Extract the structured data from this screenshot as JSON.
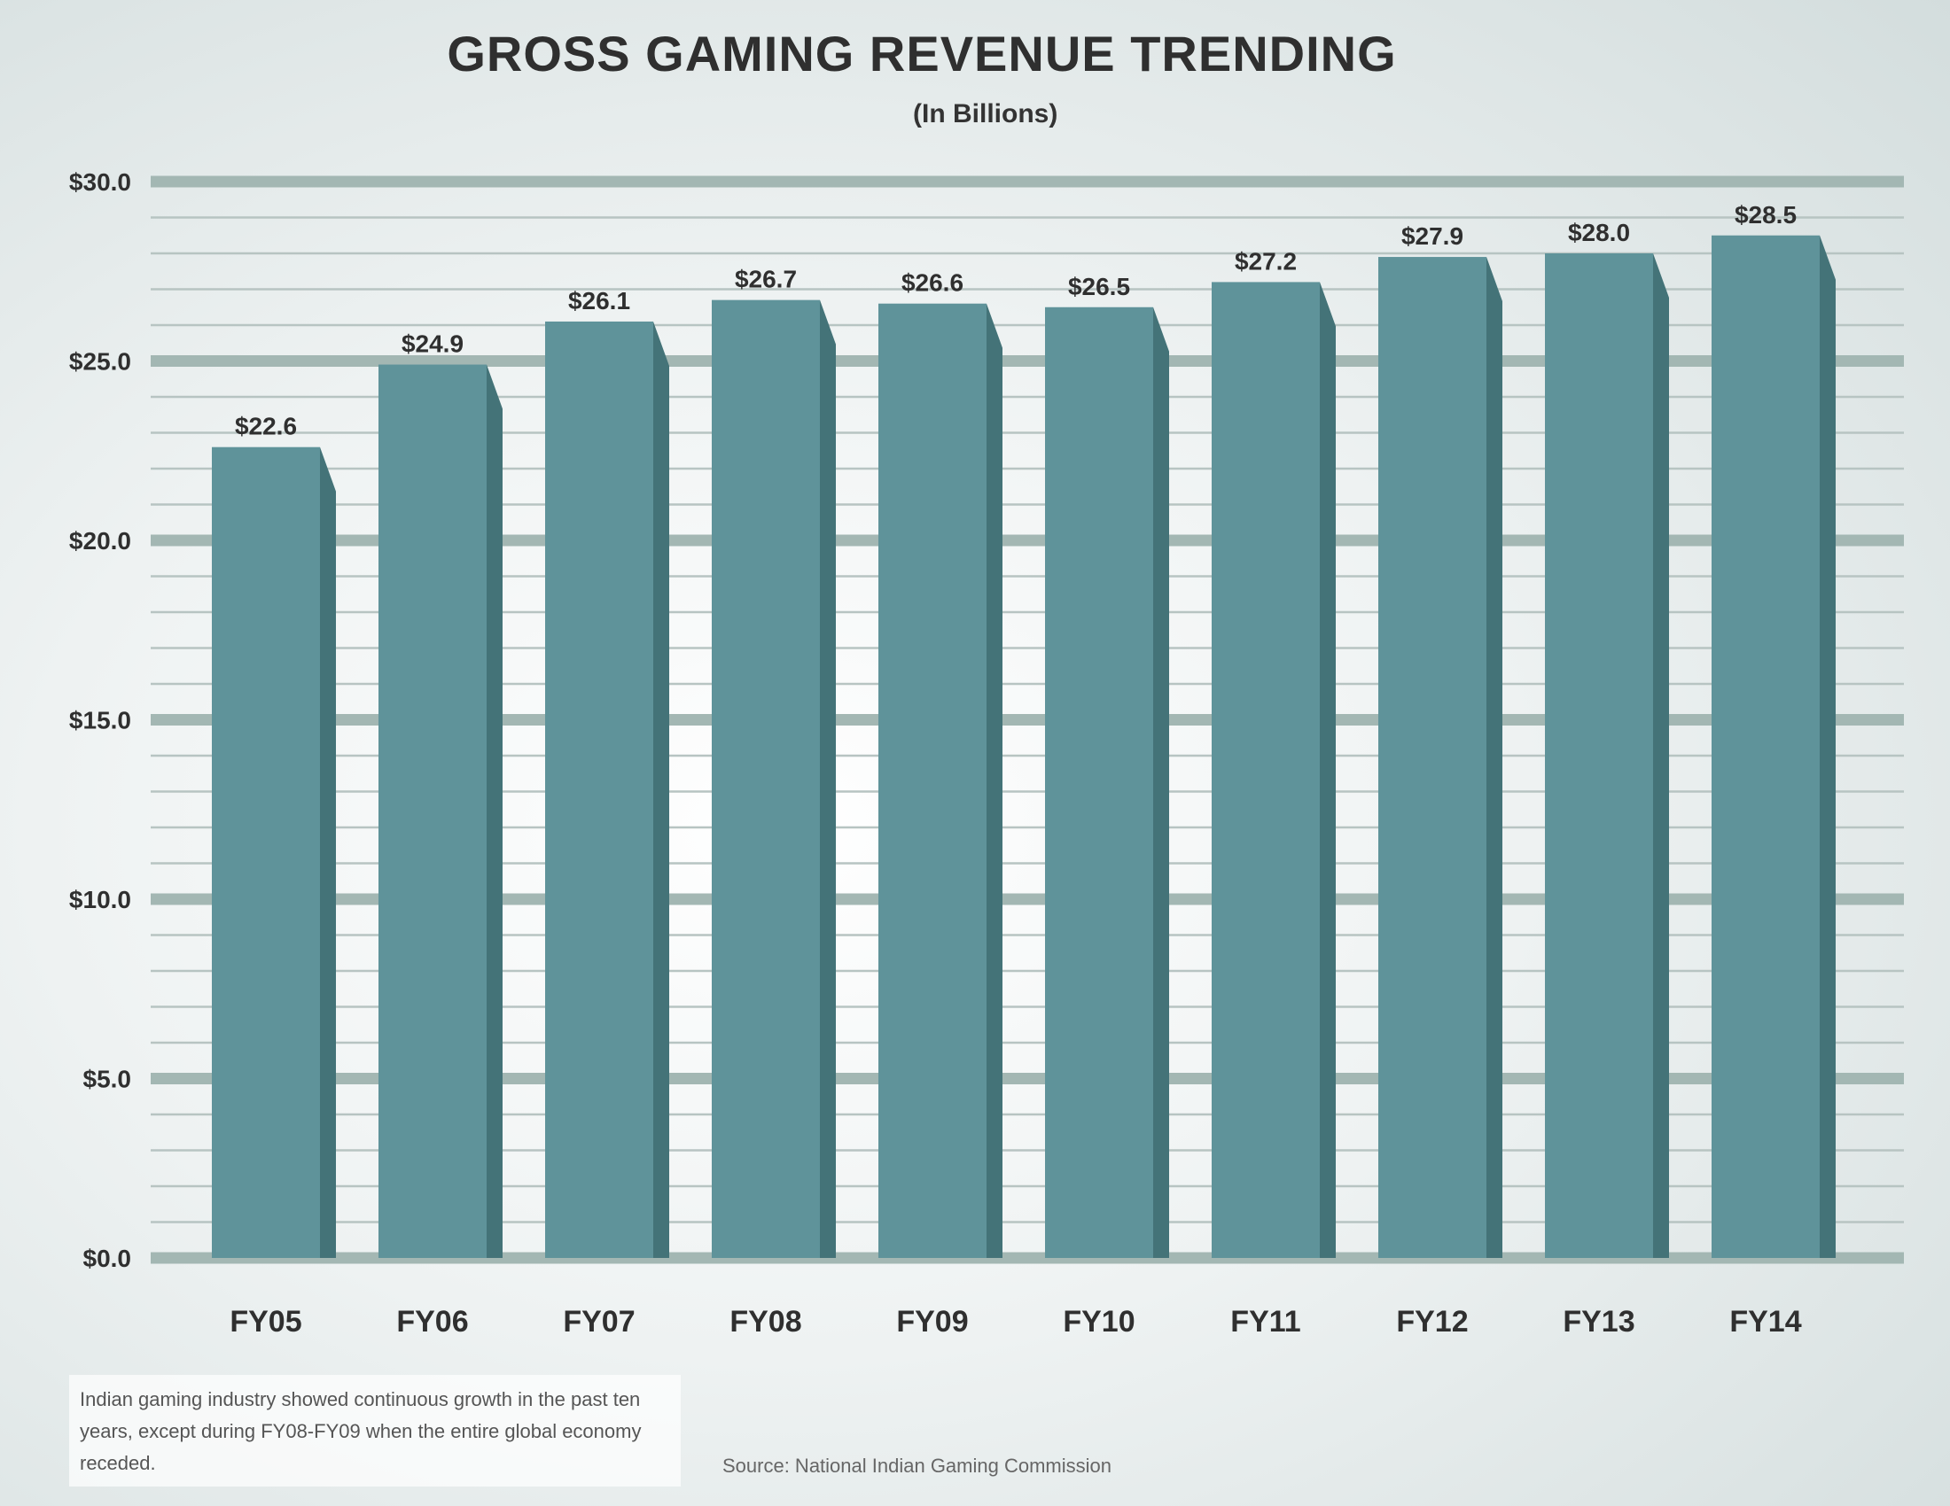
{
  "title": "GROSS GAMING REVENUE TRENDING",
  "subtitle": "(In Billions)",
  "note": "Indian gaming industry showed continuous growth in the past ten years, except during FY08-FY09 when the entire global economy receded.",
  "source": "Source: National Indian Gaming Commission",
  "colors": {
    "bar_front": "#5f939a",
    "bar_side": "#447378",
    "grid_major": "#a3b7b3",
    "grid_minor": "#b7c4c2",
    "text": "#2f2f2f"
  },
  "chart_data": {
    "type": "bar",
    "title": "GROSS GAMING REVENUE TRENDING",
    "subtitle": "(In Billions)",
    "categories": [
      "FY05",
      "FY06",
      "FY07",
      "FY08",
      "FY09",
      "FY10",
      "FY11",
      "FY12",
      "FY13",
      "FY14"
    ],
    "values": [
      22.6,
      24.9,
      26.1,
      26.7,
      26.6,
      26.5,
      27.2,
      27.9,
      28.0,
      28.5
    ],
    "data_labels": [
      "$22.6",
      "$24.9",
      "$26.1",
      "$26.7",
      "$26.6",
      "$26.5",
      "$27.2",
      "$27.9",
      "$28.0",
      "$28.5"
    ],
    "y_ticks": [
      0,
      5,
      10,
      15,
      20,
      25,
      30
    ],
    "y_tick_labels": [
      "$0.0",
      "$5.0",
      "$10.0",
      "$15.0",
      "$20.0",
      "$25.0",
      "$30.0"
    ],
    "ylim": [
      0,
      30
    ],
    "grid": true,
    "legend": "none"
  }
}
